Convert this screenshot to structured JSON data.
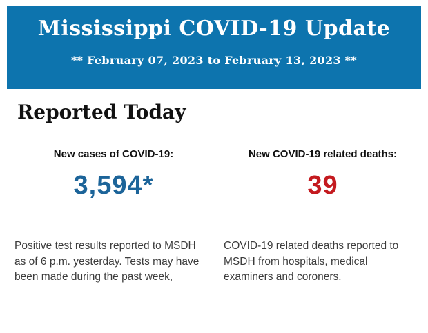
{
  "header": {
    "title": "Mississippi COVID-19 Update",
    "subtitle": "** February 07, 2023 to February 13, 2023 **",
    "background_color": "#0d74ae",
    "text_color": "#ffffff"
  },
  "section": {
    "heading": "Reported Today"
  },
  "stats": {
    "cases": {
      "label": "New cases of COVID-19:",
      "value": "3,594*",
      "value_color": "#1c6499",
      "description": "Positive test results reported to MSDH as of 6 p.m. yesterday. Tests may have been made during the past week,"
    },
    "deaths": {
      "label": "New COVID-19 related deaths:",
      "value": "39",
      "value_color": "#c41a1f",
      "description": "COVID-19 related deaths reported to MSDH from hospitals, medical examiners and coroners."
    }
  }
}
